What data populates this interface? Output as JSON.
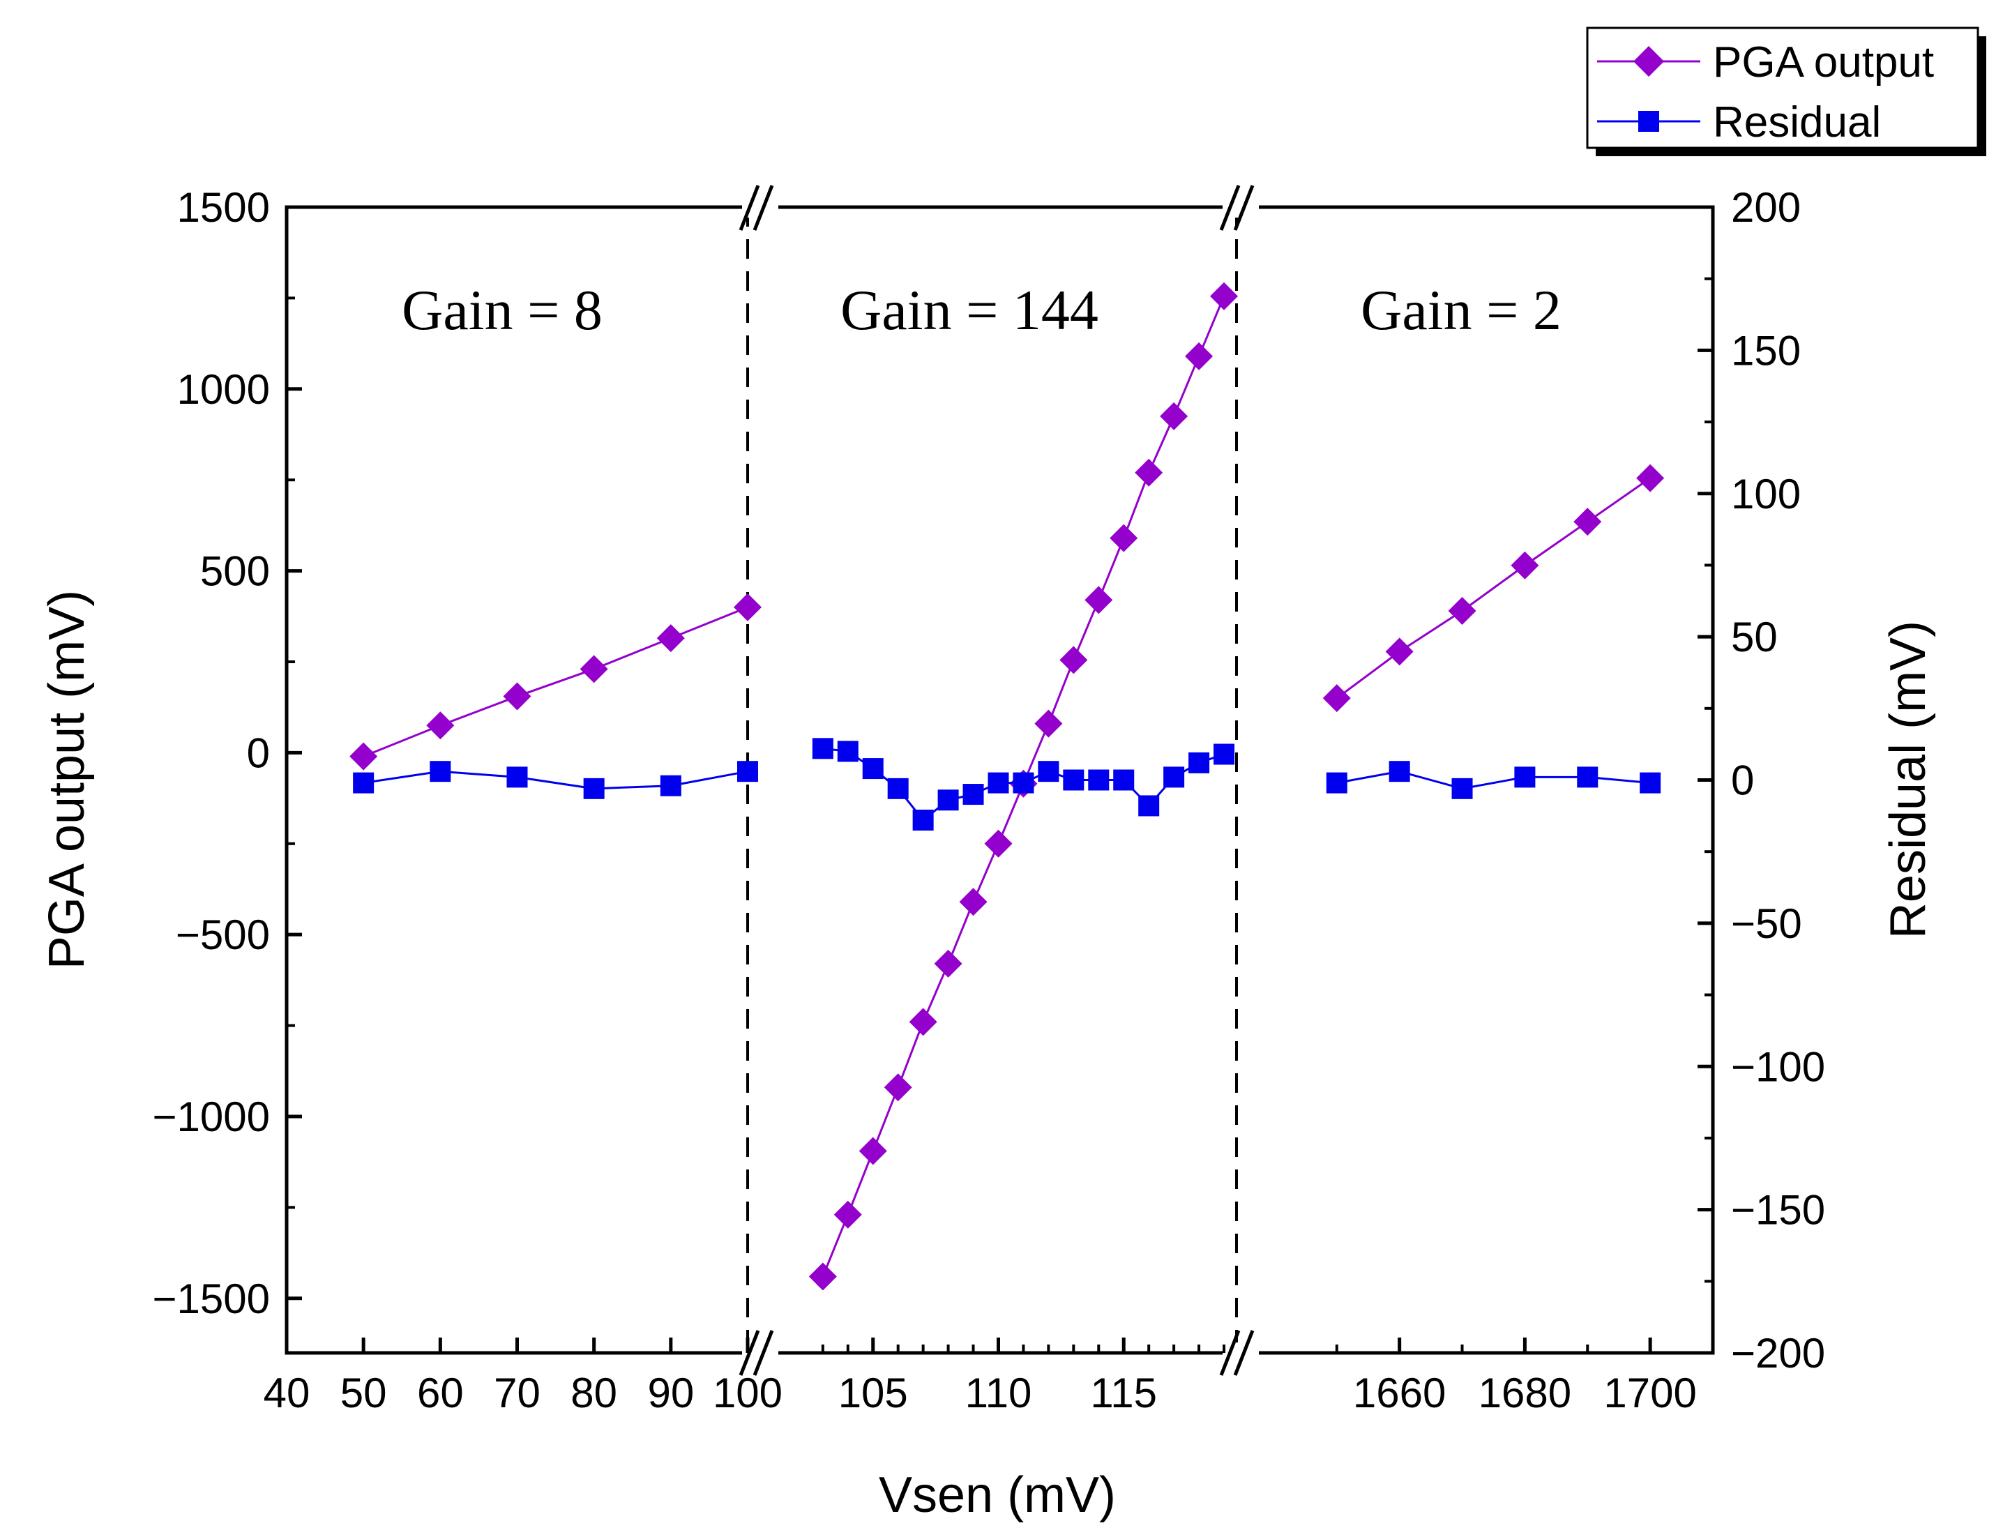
{
  "chart_data": {
    "type": "line",
    "title": "",
    "xlabel": "Vsen (mV)",
    "ylabel": "PGA output (mV)",
    "y2label": "Residual (mV)",
    "ylim": [
      -1650,
      1500
    ],
    "y2lim": [
      -200,
      200
    ],
    "yticks": [
      "1500",
      "1000",
      "500",
      "0",
      "−500",
      "−1000",
      "−1500"
    ],
    "y2ticks": [
      "200",
      "150",
      "100",
      "50",
      "0",
      "−50",
      "−100",
      "−150",
      "−200"
    ],
    "legend": {
      "position": "top-right",
      "entries": [
        "PGA output",
        "Residual"
      ]
    },
    "series_colors": {
      "pga": "#9400CC",
      "residual": "#0000EE"
    },
    "segments": [
      {
        "name": "Gain = 8",
        "annotation": "Gain = 8",
        "xlim": [
          40,
          100
        ],
        "xticks": [
          "40",
          "50",
          "60",
          "70",
          "80",
          "90",
          "100"
        ],
        "x": [
          50,
          60,
          70,
          80,
          90,
          100
        ],
        "pga": [
          -10,
          75,
          155,
          230,
          315,
          400
        ],
        "residual": [
          -1,
          3,
          1,
          -3,
          -2,
          3
        ]
      },
      {
        "name": "Gain = 144",
        "annotation": "Gain = 144",
        "xlim": [
          100,
          119.5
        ],
        "xticks": [
          "105",
          "110",
          "115"
        ],
        "x": [
          103,
          104,
          105,
          106,
          107,
          108,
          109,
          110,
          111,
          112,
          113,
          114,
          115,
          116,
          117,
          118,
          119
        ],
        "pga": [
          -1440,
          -1270,
          -1095,
          -920,
          -740,
          -580,
          -410,
          -250,
          -85,
          80,
          255,
          420,
          590,
          770,
          925,
          1090,
          1255
        ],
        "residual": [
          11,
          10,
          4,
          -3,
          -14,
          -7,
          -5,
          -1,
          -1,
          3,
          0,
          0,
          0,
          -9,
          1,
          6,
          9
        ]
      },
      {
        "name": "Gain = 2",
        "annotation": "Gain = 2",
        "xlim": [
          1634,
          1710
        ],
        "xticks": [
          "1660",
          "1680",
          "1700"
        ],
        "x": [
          1650,
          1660,
          1670,
          1680,
          1690,
          1700
        ],
        "pga": [
          150,
          278,
          390,
          515,
          635,
          755
        ],
        "residual": [
          -1,
          3,
          -3,
          1,
          1,
          -1
        ]
      }
    ]
  }
}
